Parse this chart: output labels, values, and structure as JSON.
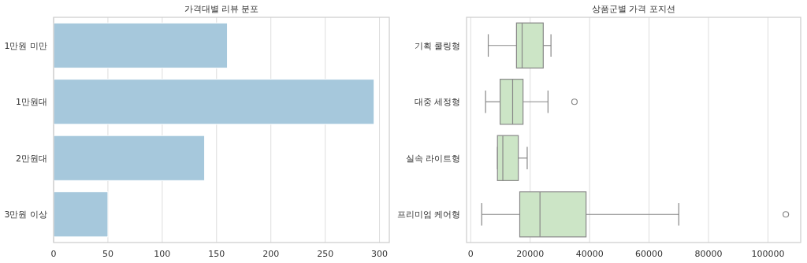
{
  "chart_data": [
    {
      "type": "bar",
      "title": "가격대별 리뷰 분포",
      "orientation": "horizontal",
      "categories": [
        "1만원 미만",
        "1만원대",
        "2만원대",
        "3만원 이상"
      ],
      "values": [
        160,
        295,
        139,
        50
      ],
      "color": "#a6c8dc",
      "xlim": [
        0,
        309
      ],
      "xticks": [
        0,
        50,
        100,
        150,
        200,
        250,
        300
      ],
      "grid": "x"
    },
    {
      "type": "box",
      "title": "상품군별 가격 포지션",
      "orientation": "horizontal",
      "categories": [
        "기획 쿨링형",
        "대중 세정형",
        "실속 라이트형",
        "프리미엄 케어형"
      ],
      "color": "#cce5c6",
      "xlim": [
        -1400,
        111000
      ],
      "xticks": [
        0,
        20000,
        40000,
        60000,
        80000,
        100000
      ],
      "grid": "x",
      "boxes": [
        {
          "low": 5900,
          "q1": 15400,
          "median": 17300,
          "q3": 24400,
          "high": 27000
        },
        {
          "low": 5000,
          "q1": 9900,
          "median": 14100,
          "q3": 17600,
          "high": 26000,
          "outliers": [
            34900
          ]
        },
        {
          "low": 9000,
          "q1": 9000,
          "median": 10800,
          "q3": 16000,
          "high": 19000
        },
        {
          "low": 3700,
          "q1": 16500,
          "median": 23300,
          "q3": 38800,
          "high": 70000,
          "outliers": [
            106000
          ]
        }
      ]
    }
  ]
}
